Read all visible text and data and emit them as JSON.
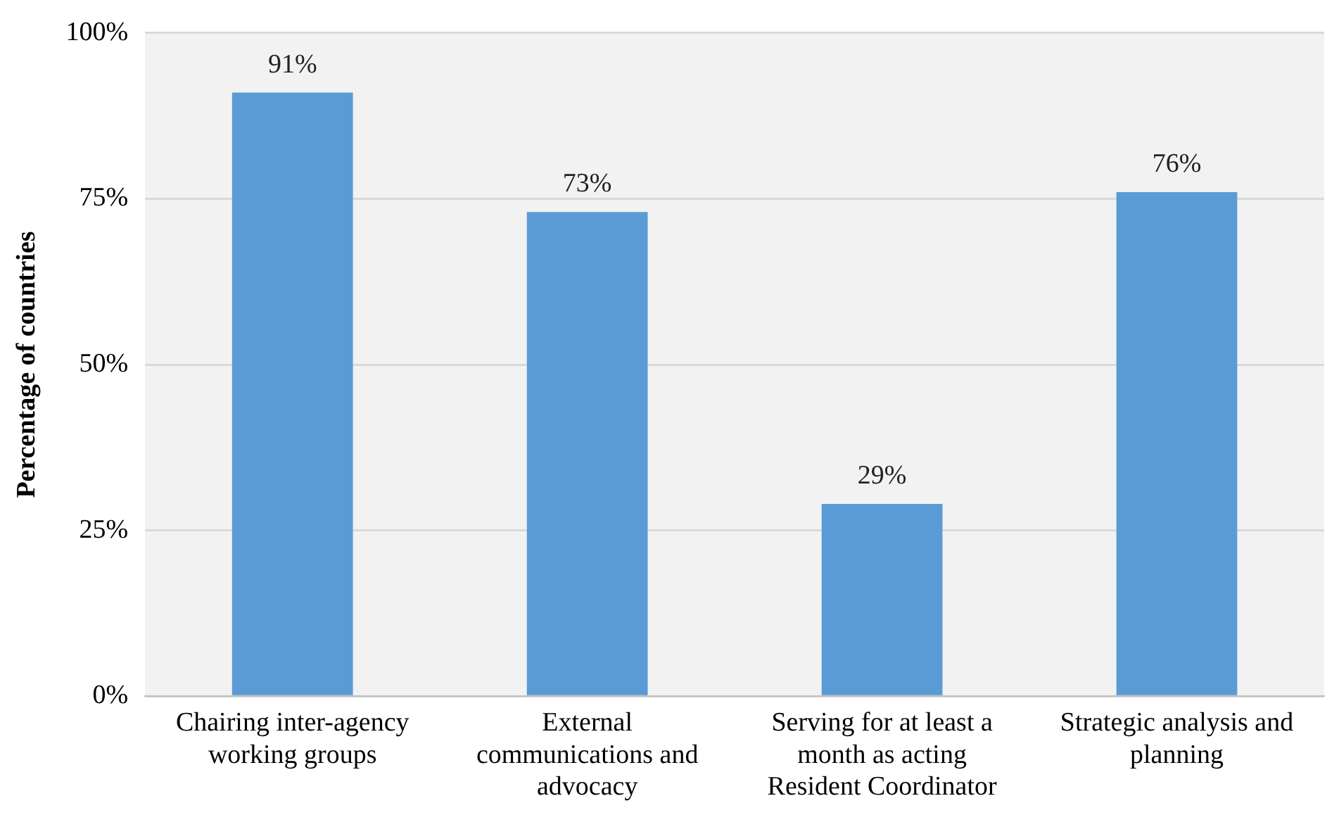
{
  "chart_data": {
    "type": "bar",
    "ylabel": "Percentage of countries",
    "categories": [
      "Chairing inter-agency working groups",
      "External communications and advocacy",
      "Serving for at least a month as acting Resident Coordinator",
      "Strategic analysis and planning"
    ],
    "values": [
      91,
      73,
      29,
      76
    ],
    "color": "#5b9bd5",
    "value_labels": [
      "91%",
      "73%",
      "29%",
      "76%"
    ],
    "ylim": [
      0,
      100
    ],
    "yticks": [
      {
        "value": 0,
        "label": "0%"
      },
      {
        "value": 25,
        "label": "25%"
      },
      {
        "value": 50,
        "label": "50%"
      },
      {
        "value": 75,
        "label": "75%"
      },
      {
        "value": 100,
        "label": "100%"
      }
    ],
    "grid": "y",
    "legend": false
  }
}
